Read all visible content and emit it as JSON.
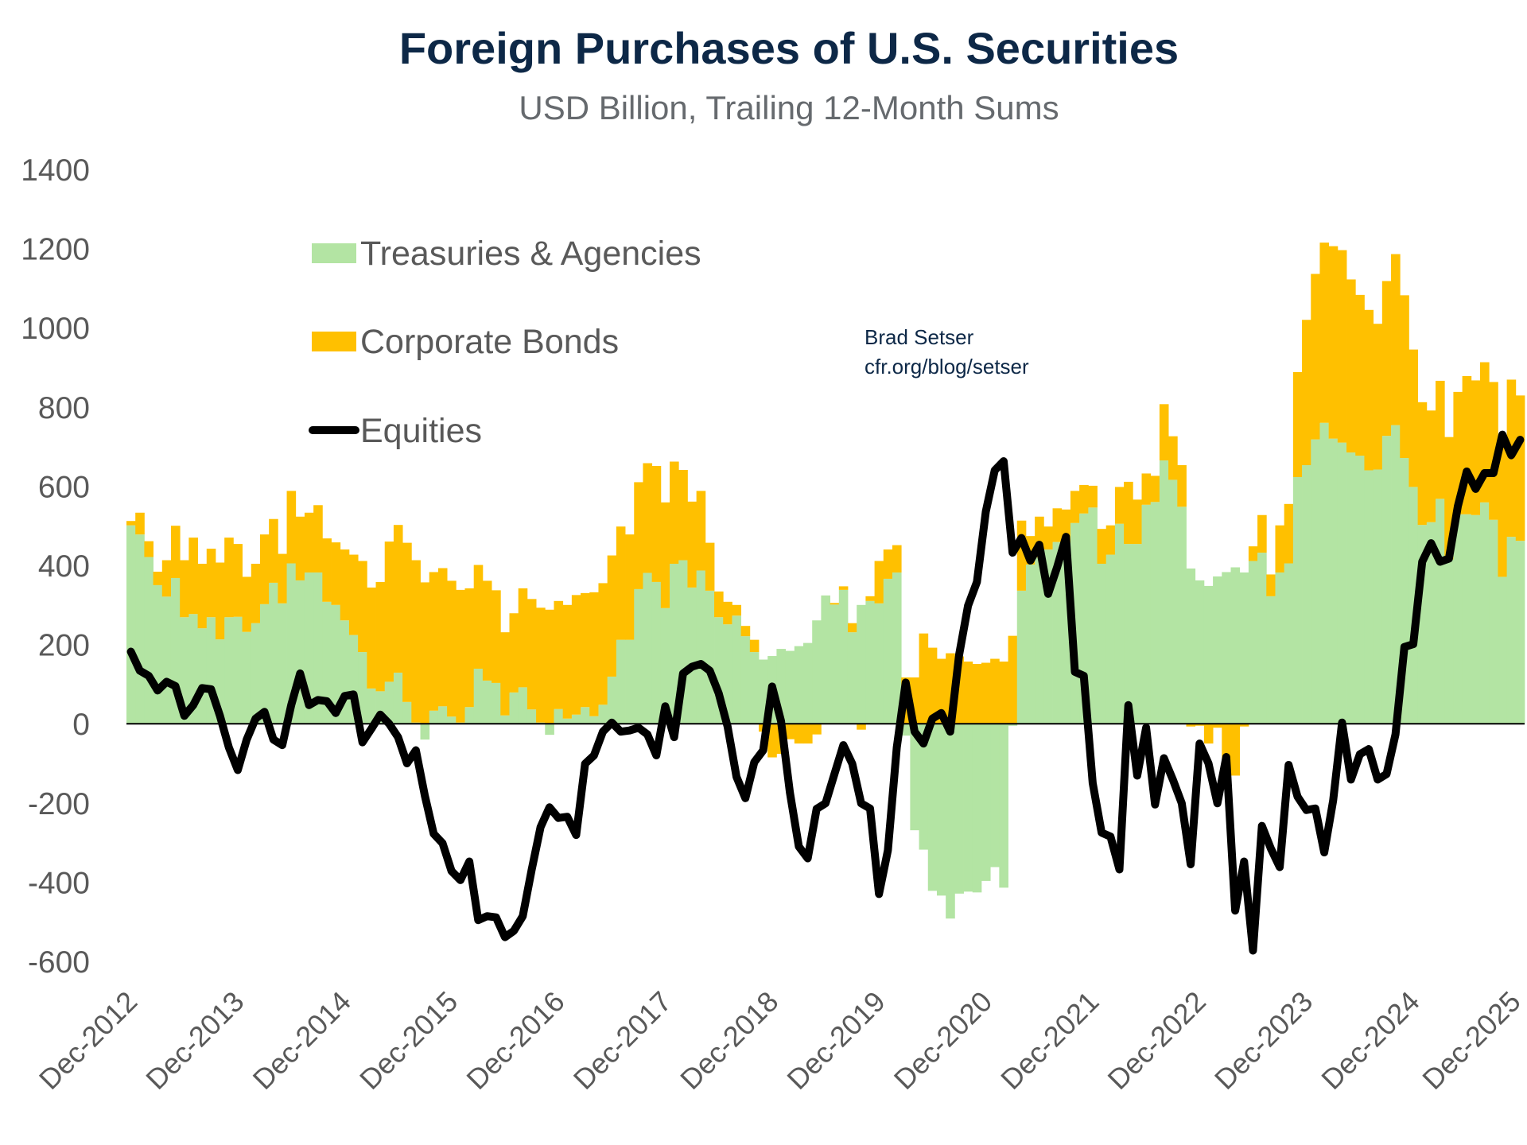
{
  "chart_data": {
    "type": "bar",
    "stacked": true,
    "title": "Foreign Purchases of U.S. Securities",
    "subtitle": "USD Billion, Trailing 12-Month Sums",
    "annotation": [
      "Brad Setser",
      "cfr.org/blog/setser"
    ],
    "xlabel": "",
    "ylabel": "",
    "x_start": "Dec-2012",
    "x_end": "Dec-2025",
    "frequency": "monthly",
    "x_tick_labels": [
      "Dec-2012",
      "Dec-2013",
      "Dec-2014",
      "Dec-2015",
      "Dec-2016",
      "Dec-2017",
      "Dec-2018",
      "Dec-2019",
      "Dec-2020",
      "Dec-2021",
      "Dec-2022",
      "Dec-2023",
      "Dec-2024",
      "Dec-2025"
    ],
    "y_ticks": [
      1400,
      1200,
      1000,
      800,
      600,
      400,
      200,
      0,
      -200,
      -400,
      -600
    ],
    "y_tick_labels": [
      "1400",
      "1200",
      "1000",
      "800",
      "600",
      "400",
      "200",
      "0",
      "-200",
      "-400",
      "-600"
    ],
    "ylim": [
      -600,
      1400
    ],
    "grid": false,
    "legend_position": "top-left",
    "series": [
      {
        "name": "Treasuries & Agencies",
        "kind": "bar",
        "color": "#b3e4a3",
        "values": [
          501,
          478,
          421,
          350,
          321,
          368,
          269,
          277,
          241,
          269,
          213,
          269,
          270,
          232,
          254,
          302,
          356,
          304,
          405,
          362,
          382,
          382,
          308,
          300,
          261,
          224,
          181,
          89,
          82,
          106,
          129,
          55,
          3,
          -40,
          33,
          44,
          18,
          3,
          42,
          139,
          109,
          103,
          21,
          79,
          92,
          36,
          3,
          -28,
          37,
          13,
          23,
          42,
          19,
          48,
          119,
          212,
          212,
          340,
          381,
          358,
          292,
          404,
          413,
          344,
          387,
          336,
          269,
          251,
          273,
          221,
          181,
          162,
          171,
          189,
          184,
          196,
          204,
          261,
          324,
          301,
          338,
          231,
          300,
          310,
          304,
          366,
          382,
          -30,
          -269,
          -318,
          -422,
          -434,
          -492,
          -429,
          -424,
          -426,
          -397,
          -362,
          -414,
          -5,
          336,
          402,
          420,
          440,
          459,
          456,
          507,
          531,
          546,
          404,
          427,
          505,
          454,
          454,
          553,
          560,
          665,
          616,
          548,
          392,
          362,
          348,
          372,
          383,
          395,
          382,
          411,
          432,
          322,
          382,
          405,
          623,
          653,
          718,
          760,
          720,
          710,
          685,
          677,
          640,
          642,
          727,
          754,
          671,
          598,
          502,
          509,
          568,
          415,
          529,
          529,
          527,
          559,
          515,
          371,
          472,
          462
        ]
      },
      {
        "name": "Corporate Bonds",
        "kind": "bar",
        "color": "#ffc000",
        "values": [
          11,
          55,
          40,
          34,
          92,
          132,
          144,
          193,
          163,
          173,
          194,
          201,
          184,
          139,
          150,
          176,
          161,
          125,
          183,
          161,
          151,
          170,
          160,
          158,
          179,
          203,
          230,
          255,
          276,
          354,
          373,
          402,
          410,
          357,
          350,
          349,
          343,
          335,
          300,
          262,
          252,
          234,
          210,
          200,
          250,
          279,
          290,
          288,
          273,
          287,
          302,
          288,
          313,
          307,
          306,
          286,
          266,
          270,
          277,
          293,
          267,
          258,
          228,
          217,
          201,
          121,
          65,
          57,
          27,
          26,
          31,
          -20,
          -85,
          -76,
          -39,
          -50,
          -50,
          -27,
          0,
          4,
          9,
          23,
          -15,
          12,
          107,
          74,
          69,
          117,
          117,
          228,
          192,
          164,
          178,
          170,
          157,
          151,
          154,
          164,
          157,
          222,
          177,
          72,
          103,
          58,
          85,
          85,
          81,
          72,
          55,
          88,
          74,
          93,
          157,
          112,
          79,
          66,
          142,
          110,
          105,
          -7,
          -5,
          -50,
          -10,
          -131,
          -131,
          -7,
          37,
          95,
          55,
          119,
          150,
          265,
          367,
          418,
          455,
          486,
          486,
          437,
          406,
          405,
          368,
          391,
          432,
          411,
          347,
          310,
          282,
          298,
          309,
          309,
          349,
          340,
          354,
          348,
          353,
          397,
          367
        ]
      },
      {
        "name": "Equities",
        "kind": "line",
        "color": "#000000",
        "values": [
          182,
          134,
          121,
          84,
          106,
          95,
          20,
          47,
          90,
          87,
          20,
          -60,
          -117,
          -40,
          13,
          30,
          -40,
          -54,
          47,
          127,
          47,
          60,
          57,
          27,
          70,
          74,
          -47,
          -13,
          23,
          0,
          -34,
          -100,
          -67,
          -181,
          -278,
          -302,
          -372,
          -395,
          -348,
          -496,
          -486,
          -489,
          -539,
          -523,
          -486,
          -369,
          -261,
          -211,
          -238,
          -235,
          -281,
          -101,
          -80,
          -20,
          3,
          -20,
          -17,
          -10,
          -27,
          -80,
          44,
          -34,
          127,
          144,
          151,
          134,
          77,
          -7,
          -134,
          -188,
          -97,
          -67,
          94,
          7,
          -174,
          -310,
          -340,
          -215,
          -201,
          -127,
          -54,
          -101,
          -201,
          -214,
          -430,
          -320,
          -60,
          104,
          -20,
          -50,
          13,
          27,
          -20,
          174,
          298,
          358,
          536,
          640,
          663,
          432,
          469,
          412,
          452,
          328,
          395,
          472,
          131,
          121,
          -150,
          -275,
          -285,
          -368,
          47,
          -131,
          -10,
          -204,
          -87,
          -141,
          -201,
          -355,
          -50,
          -100,
          -201,
          -84,
          -472,
          -348,
          -573,
          -258,
          -315,
          -362,
          -104,
          -184,
          -218,
          -214,
          -325,
          -194,
          3,
          -141,
          -77,
          -64,
          -141,
          -127,
          -27,
          194,
          201,
          409,
          456,
          409,
          417,
          549,
          637,
          593,
          633,
          633,
          730,
          678,
          717
        ]
      }
    ]
  }
}
